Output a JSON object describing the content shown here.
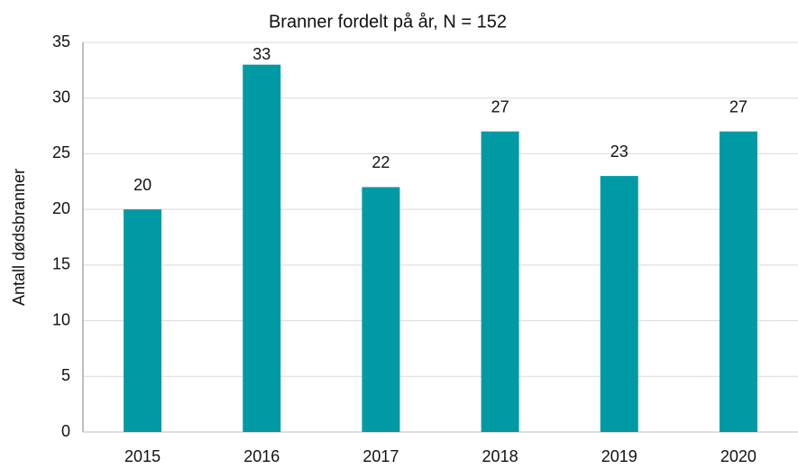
{
  "chart_data": {
    "type": "bar",
    "title": "Branner fordelt på år, N = 152",
    "y_label": "Antall dødsbranner",
    "categories": [
      "2015",
      "2016",
      "2017",
      "2018",
      "2019",
      "2020"
    ],
    "values": [
      20,
      33,
      22,
      27,
      23,
      27
    ],
    "color": "#009aa5",
    "ylim": [
      0,
      35
    ],
    "yticks": [
      0,
      5,
      10,
      15,
      20,
      25,
      30,
      35
    ],
    "grid": true
  }
}
